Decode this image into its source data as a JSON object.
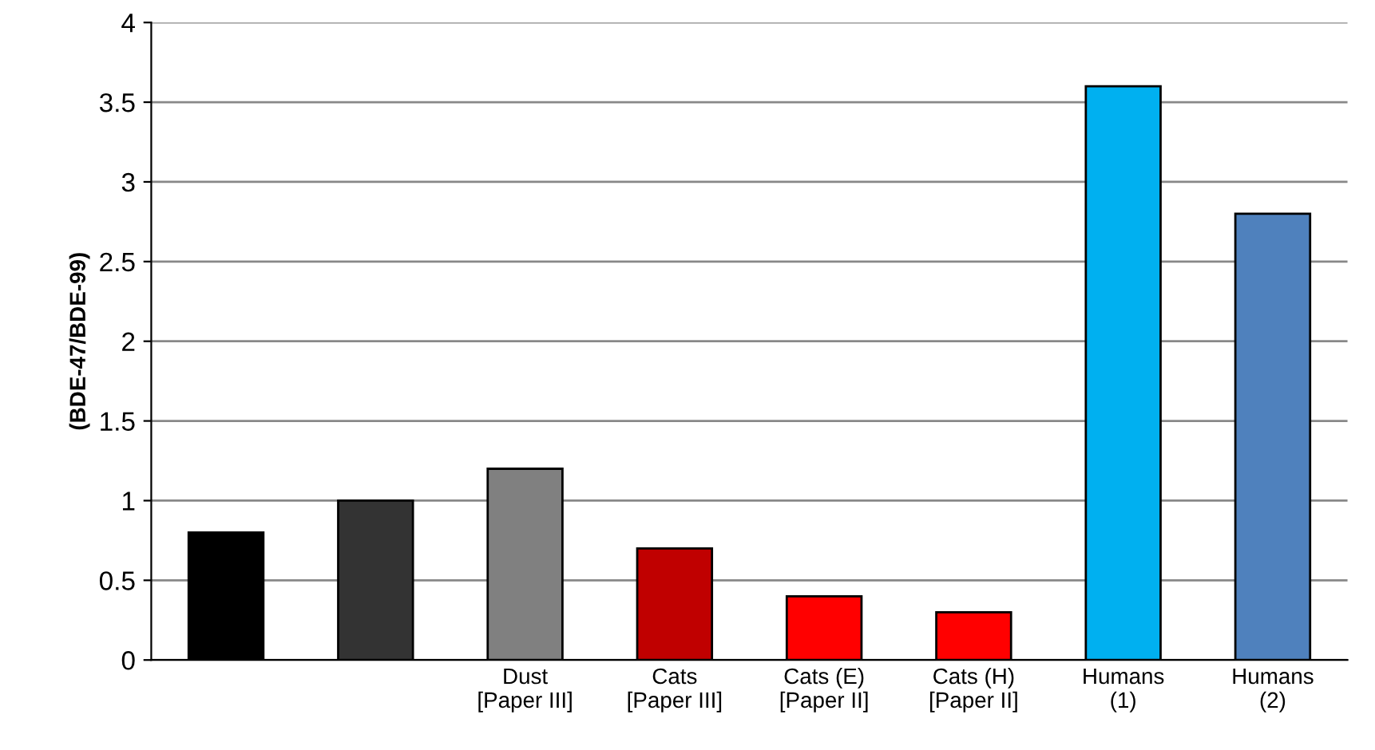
{
  "chart_data": {
    "type": "bar",
    "ylabel": "(BDE-47/BDE-99)",
    "categories": [
      null,
      null,
      "Dust\n[Paper III]",
      "Cats\n[Paper III]",
      "Cats (E)\n[Paper II]",
      "Cats (H)\n[Paper II]",
      "Humans\n(1)",
      "Humans\n(2)"
    ],
    "values": [
      0.8,
      1,
      1.2,
      0.7,
      0.4,
      0.3,
      3.6,
      2.8
    ],
    "colors": [
      "#000000",
      "#333333",
      "#808080",
      "#c00000",
      "#ff0000",
      "#ff0000",
      "#00b0f0",
      "#4f81bd"
    ],
    "ylim": [
      0,
      4
    ],
    "yticks": [
      0,
      0.5,
      1,
      1.5,
      2,
      2.5,
      3,
      3.5,
      4
    ],
    "grid": "y",
    "legend": false
  }
}
